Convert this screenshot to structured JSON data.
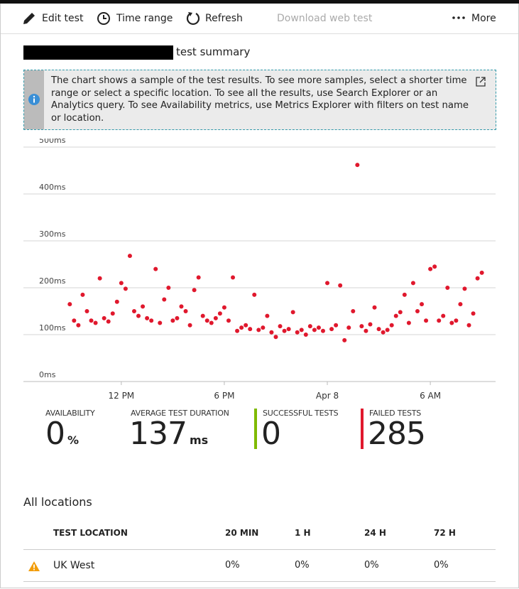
{
  "toolbar": {
    "items": [
      "Edit test",
      "Time range",
      "Refresh",
      "Download web test",
      "More"
    ]
  },
  "header": {
    "title": "test summary"
  },
  "info": {
    "text": "The chart shows a sample of the test results. To see more samples, select a shorter time range or select a specific location. To see all the results, use Search Explorer or an Analytics query. To see Availability metrics, use Metrics Explorer with filters on test name or location."
  },
  "chart_data": {
    "type": "scatter",
    "color": "#e0182d",
    "grid": true,
    "x": [
      9.0,
      9.25,
      9.5,
      9.75,
      10.0,
      10.25,
      10.5,
      10.75,
      11.0,
      11.25,
      11.5,
      11.75,
      12.0,
      12.25,
      12.5,
      12.75,
      13.0,
      13.25,
      13.5,
      13.75,
      14.0,
      14.25,
      14.5,
      14.75,
      15.0,
      15.25,
      15.5,
      15.75,
      16.0,
      16.25,
      16.5,
      16.75,
      17.0,
      17.25,
      17.5,
      17.75,
      18.0,
      18.25,
      18.5,
      18.75,
      19.0,
      19.25,
      19.5,
      19.75,
      20.0,
      20.25,
      20.5,
      20.75,
      21.0,
      21.25,
      21.5,
      21.75,
      22.0,
      22.25,
      22.5,
      22.75,
      23.0,
      23.25,
      23.5,
      23.75,
      24.0,
      24.25,
      24.5,
      24.75,
      25.0,
      25.25,
      25.5,
      25.75,
      26.0,
      26.25,
      26.5,
      26.75,
      27.0,
      27.25,
      27.5,
      27.75,
      28.0,
      28.25,
      28.5,
      28.75,
      29.0,
      29.25,
      29.5,
      29.75,
      30.0,
      30.25,
      30.5,
      30.75,
      31.0,
      31.25,
      31.5,
      31.75,
      32.0,
      32.25,
      32.5,
      32.75,
      33.0
    ],
    "values": [
      165,
      130,
      120,
      185,
      150,
      130,
      125,
      220,
      135,
      128,
      145,
      170,
      210,
      198,
      268,
      150,
      140,
      160,
      135,
      130,
      240,
      125,
      175,
      200,
      130,
      135,
      160,
      150,
      120,
      195,
      222,
      140,
      130,
      125,
      135,
      145,
      158,
      130,
      222,
      108,
      115,
      120,
      112,
      185,
      110,
      115,
      140,
      105,
      95,
      118,
      108,
      112,
      148,
      105,
      110,
      100,
      118,
      110,
      115,
      108,
      210,
      112,
      120,
      205,
      88,
      115,
      150,
      462,
      118,
      108,
      122,
      158,
      112,
      105,
      110,
      120,
      140,
      148,
      185,
      125,
      210,
      150,
      165,
      130,
      240,
      245,
      130,
      140,
      200,
      125,
      130,
      165,
      198,
      120,
      145,
      220,
      232
    ],
    "xlim": [
      6.3,
      33.8
    ],
    "xticks": [
      {
        "value": 12,
        "label": "12 PM"
      },
      {
        "value": 18,
        "label": "6 PM"
      },
      {
        "value": 24,
        "label": "Apr 8"
      },
      {
        "value": 30,
        "label": "6 AM"
      }
    ],
    "ylim": [
      0,
      500
    ],
    "yticks": [
      {
        "value": 0,
        "label": "0ms"
      },
      {
        "value": 100,
        "label": "100ms"
      },
      {
        "value": 200,
        "label": "200ms"
      },
      {
        "value": 300,
        "label": "300ms"
      },
      {
        "value": 400,
        "label": "400ms"
      },
      {
        "value": 500,
        "label": "500ms"
      }
    ]
  },
  "metrics": [
    {
      "label": "AVAILABILITY",
      "value": 0,
      "unit": "%"
    },
    {
      "label": "AVERAGE TEST DURATION",
      "value": 137,
      "unit": "ms"
    },
    {
      "label": "SUCCESSFUL TESTS",
      "value": 0
    },
    {
      "label": "FAILED TESTS",
      "value": 285
    }
  ],
  "table": {
    "title": "All locations",
    "columns": [
      "TEST LOCATION",
      "20 MIN",
      "1 H",
      "24 H",
      "72 H"
    ],
    "rows": [
      [
        "UK West",
        "0%",
        "0%",
        "0%",
        "0%"
      ]
    ]
  }
}
